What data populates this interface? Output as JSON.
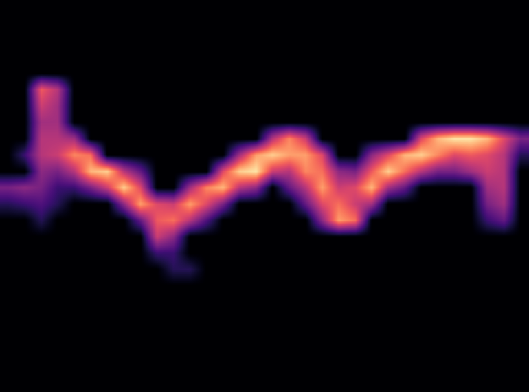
{
  "chart_data": {
    "type": "heatmap",
    "tick_labels": false,
    "zlim": [
      0,
      1
    ],
    "cells": [
      [
        0,
        0,
        0,
        0,
        0,
        0,
        0,
        0,
        0,
        0,
        0,
        0,
        0,
        0,
        0,
        0,
        0,
        0,
        0,
        0,
        0,
        0,
        0,
        0,
        0,
        0,
        0,
        0,
        0,
        0,
        0,
        0
      ],
      [
        0,
        0,
        0,
        0,
        0,
        0,
        0,
        0,
        0,
        0,
        0,
        0,
        0,
        0,
        0,
        0,
        0,
        0,
        0,
        0,
        0,
        0,
        0,
        0,
        0,
        0,
        0,
        0,
        0,
        0,
        0,
        0
      ],
      [
        0,
        0,
        0,
        0,
        0,
        0,
        0,
        0,
        0,
        0,
        0,
        0,
        0,
        0,
        0,
        0,
        0,
        0,
        0,
        0,
        0,
        0,
        0,
        0,
        0,
        0,
        0,
        0,
        0,
        0,
        0,
        0
      ],
      [
        0,
        0,
        0,
        0,
        0,
        0,
        0,
        0,
        0,
        0,
        0,
        0,
        0,
        0,
        0,
        0,
        0,
        0,
        0,
        0,
        0,
        0,
        0,
        0,
        0,
        0,
        0,
        0,
        0,
        0,
        0,
        0
      ],
      [
        0,
        0,
        0,
        0,
        0,
        0,
        0,
        0,
        0,
        0,
        0,
        0,
        0,
        0,
        0,
        0,
        0,
        0,
        0,
        0,
        0,
        0,
        0,
        0,
        0,
        0,
        0,
        0,
        0,
        0,
        0,
        0
      ],
      [
        0,
        0,
        0.65,
        0.5,
        0,
        0,
        0,
        0,
        0,
        0,
        0,
        0,
        0,
        0,
        0,
        0,
        0,
        0,
        0,
        0,
        0,
        0,
        0,
        0,
        0,
        0,
        0,
        0,
        0,
        0,
        0,
        0
      ],
      [
        0,
        0,
        0.55,
        0.45,
        0,
        0,
        0,
        0,
        0,
        0,
        0,
        0,
        0,
        0,
        0,
        0,
        0,
        0,
        0,
        0,
        0,
        0,
        0,
        0,
        0,
        0,
        0,
        0,
        0,
        0,
        0,
        0
      ],
      [
        0,
        0,
        0.45,
        0.45,
        0,
        0,
        0,
        0,
        0,
        0,
        0,
        0,
        0,
        0,
        0,
        0,
        0,
        0,
        0,
        0,
        0,
        0,
        0,
        0,
        0,
        0,
        0,
        0,
        0,
        0,
        0,
        0
      ],
      [
        0,
        0,
        0.5,
        0.5,
        0.45,
        0,
        0,
        0,
        0,
        0,
        0,
        0,
        0,
        0,
        0,
        0,
        0.5,
        0.75,
        0.55,
        0,
        0,
        0,
        0,
        0,
        0,
        0.6,
        0.85,
        0.95,
        0.95,
        0.85,
        0.6,
        0.35
      ],
      [
        0,
        0.2,
        0.5,
        0.55,
        0.75,
        0.7,
        0,
        0,
        0,
        0,
        0,
        0,
        0,
        0,
        0.45,
        0.8,
        0.9,
        0.8,
        0.8,
        0.6,
        0,
        0,
        0.4,
        0.6,
        0.85,
        0.9,
        0.75,
        0.6,
        0.65,
        0.6,
        0.5,
        0.15
      ],
      [
        0,
        0,
        0.4,
        0.35,
        0.5,
        0.85,
        0.9,
        0.5,
        0.3,
        0,
        0,
        0,
        0,
        0.6,
        0.9,
        0.95,
        0.55,
        0.5,
        0.75,
        0.7,
        0.4,
        0.35,
        0.65,
        0.9,
        0.7,
        0.5,
        0.35,
        0.35,
        0.45,
        0.55,
        0.5,
        0
      ],
      [
        0.35,
        0.4,
        0.35,
        0.2,
        0.2,
        0.35,
        0.55,
        0.9,
        0.6,
        0,
        0,
        0.45,
        0.75,
        0.85,
        0.5,
        0.4,
        0,
        0.3,
        0.5,
        0.8,
        0.55,
        0.6,
        0.85,
        0.45,
        0.3,
        0,
        0,
        0,
        0,
        0.45,
        0.5,
        0
      ],
      [
        0.15,
        0.2,
        0.25,
        0.15,
        0,
        0,
        0,
        0.4,
        0.8,
        0.6,
        0.55,
        0.8,
        0.6,
        0.35,
        0,
        0,
        0,
        0,
        0.3,
        0.6,
        0.7,
        0.55,
        0.45,
        0,
        0,
        0,
        0,
        0,
        0,
        0.35,
        0.45,
        0
      ],
      [
        0,
        0,
        0.15,
        0,
        0,
        0,
        0,
        0,
        0.3,
        0.65,
        0.7,
        0.5,
        0.25,
        0,
        0,
        0,
        0,
        0,
        0,
        0.4,
        0.8,
        0.7,
        0,
        0,
        0,
        0,
        0,
        0,
        0,
        0.2,
        0.3,
        0
      ],
      [
        0,
        0,
        0,
        0,
        0,
        0,
        0,
        0,
        0,
        0.55,
        0.4,
        0,
        0,
        0,
        0,
        0,
        0,
        0,
        0,
        0,
        0,
        0,
        0,
        0,
        0,
        0,
        0,
        0,
        0,
        0,
        0,
        0
      ],
      [
        0,
        0,
        0,
        0,
        0,
        0,
        0,
        0,
        0,
        0.2,
        0.2,
        0,
        0,
        0,
        0,
        0,
        0,
        0,
        0,
        0,
        0,
        0,
        0,
        0,
        0,
        0,
        0,
        0,
        0,
        0,
        0,
        0
      ],
      [
        0,
        0,
        0,
        0,
        0,
        0,
        0,
        0,
        0,
        0,
        0.15,
        0.15,
        0,
        0,
        0,
        0,
        0,
        0,
        0,
        0,
        0,
        0,
        0,
        0,
        0,
        0,
        0,
        0,
        0,
        0,
        0,
        0
      ],
      [
        0,
        0,
        0,
        0,
        0,
        0,
        0,
        0,
        0,
        0,
        0,
        0,
        0,
        0,
        0,
        0,
        0,
        0,
        0,
        0,
        0,
        0,
        0,
        0,
        0,
        0,
        0,
        0,
        0,
        0,
        0,
        0
      ],
      [
        0,
        0,
        0,
        0,
        0,
        0,
        0,
        0,
        0,
        0,
        0,
        0,
        0,
        0,
        0,
        0,
        0,
        0,
        0,
        0,
        0,
        0,
        0,
        0,
        0,
        0,
        0,
        0,
        0,
        0,
        0,
        0
      ],
      [
        0,
        0,
        0,
        0,
        0,
        0,
        0,
        0,
        0,
        0,
        0,
        0,
        0,
        0,
        0,
        0,
        0,
        0,
        0,
        0,
        0,
        0,
        0,
        0,
        0,
        0,
        0,
        0,
        0,
        0,
        0,
        0
      ],
      [
        0,
        0,
        0,
        0,
        0,
        0,
        0,
        0,
        0,
        0,
        0,
        0,
        0,
        0,
        0,
        0,
        0,
        0,
        0,
        0,
        0,
        0,
        0,
        0,
        0,
        0,
        0,
        0,
        0,
        0,
        0,
        0
      ],
      [
        0,
        0,
        0,
        0,
        0,
        0,
        0,
        0,
        0,
        0,
        0,
        0,
        0,
        0,
        0,
        0,
        0,
        0,
        0,
        0,
        0,
        0,
        0,
        0,
        0,
        0,
        0,
        0,
        0,
        0,
        0,
        0
      ],
      [
        0,
        0,
        0,
        0,
        0,
        0,
        0,
        0,
        0,
        0,
        0,
        0,
        0,
        0,
        0,
        0,
        0,
        0,
        0,
        0,
        0,
        0,
        0,
        0,
        0,
        0,
        0,
        0,
        0,
        0,
        0,
        0
      ],
      [
        0,
        0,
        0,
        0,
        0,
        0,
        0,
        0,
        0,
        0,
        0,
        0,
        0,
        0,
        0,
        0,
        0,
        0,
        0,
        0,
        0,
        0,
        0,
        0,
        0,
        0,
        0,
        0,
        0,
        0,
        0,
        0
      ]
    ]
  }
}
